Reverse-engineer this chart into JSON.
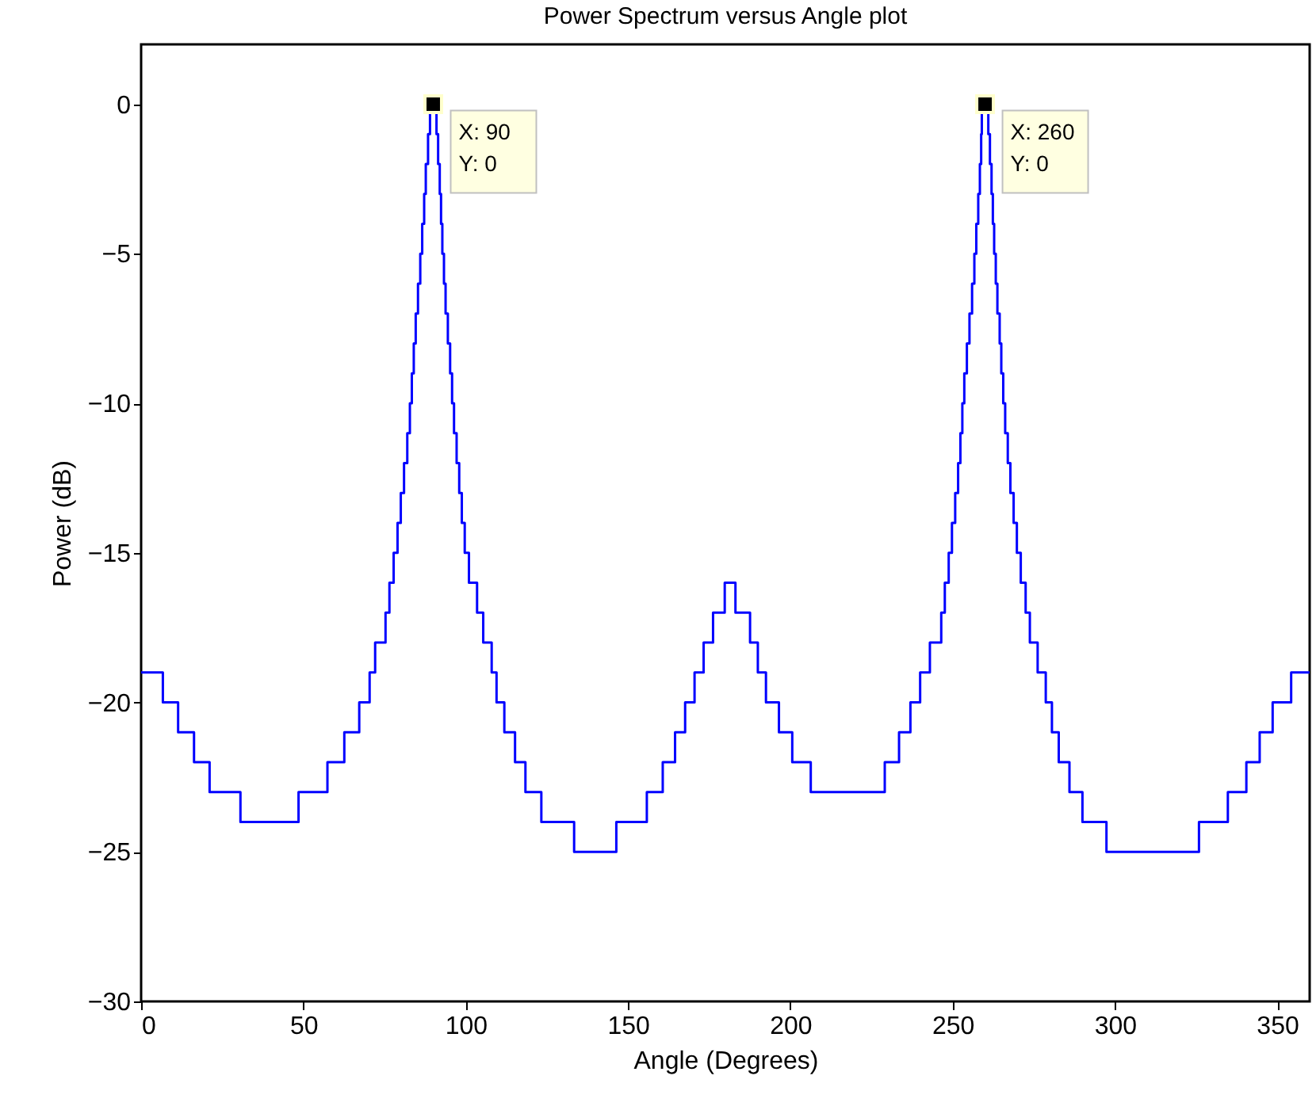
{
  "chart_data": {
    "type": "step",
    "title": "Power Spectrum versus Angle plot",
    "xlabel": "Angle (Degrees)",
    "ylabel": "Power (dB)",
    "xlim": [
      0,
      360
    ],
    "ylim": [
      -30,
      2
    ],
    "xticks": [
      0,
      50,
      100,
      150,
      200,
      250,
      300,
      350
    ],
    "yticks": [
      -30,
      -25,
      -20,
      -15,
      -10,
      -5,
      0
    ],
    "grid": false,
    "marker": "none",
    "line_style": "solid",
    "series": [
      {
        "color": "#0000ff",
        "x": [
          0,
          6.7,
          11.4,
          16.3,
          21.1,
          30.6,
          48.5,
          57.4,
          62.6,
          67.2,
          70.4,
          72.1,
          75.3,
          76.5,
          77.8,
          79,
          80,
          81,
          82,
          82.8,
          83.4,
          84,
          84.6,
          85.3,
          86,
          86.6,
          87.2,
          87.7,
          88.4,
          89,
          91,
          91.5,
          92,
          92.4,
          92.8,
          93.3,
          93.8,
          94.5,
          95.2,
          95.8,
          96.4,
          97.2,
          98,
          98.8,
          99.7,
          101,
          103.5,
          105.4,
          108,
          109.5,
          111.9,
          115.2,
          118.4,
          123.3,
          133.4,
          146.4,
          155.8,
          160.7,
          164.5,
          167.6,
          170.5,
          173.3,
          176.2,
          179.8,
          183.1,
          187.6,
          190,
          192.5,
          196.5,
          200.6,
          206.3,
          229.1,
          233.5,
          237,
          240,
          243,
          246.5,
          247.6,
          248.8,
          249.8,
          250.8,
          251.7,
          252.4,
          253,
          253.6,
          254.4,
          255.2,
          256,
          256.7,
          257.3,
          257.9,
          258.4,
          258.8,
          259,
          261,
          261.5,
          262,
          262.4,
          262.8,
          263.3,
          263.8,
          264.5,
          265,
          265.6,
          266.2,
          267,
          267.8,
          268.8,
          269.8,
          271,
          272.5,
          273.8,
          276.2,
          278.7,
          280.6,
          282.7,
          286,
          290,
          297.4,
          325.9,
          334.8,
          340.5,
          344.6,
          348.6,
          354.3,
          360
        ],
        "values": [
          -19,
          -20,
          -21,
          -22,
          -23,
          -24,
          -23,
          -22,
          -21,
          -20,
          -19,
          -18,
          -17,
          -16,
          -15,
          -14,
          -13,
          -12,
          -11,
          -10,
          -9,
          -8,
          -7,
          -6,
          -5,
          -4,
          -3,
          -2,
          -1,
          0,
          -1,
          -2,
          -3,
          -4,
          -5,
          -6,
          -7,
          -8,
          -9,
          -10,
          -11,
          -12,
          -13,
          -14,
          -15,
          -16,
          -17,
          -18,
          -19,
          -20,
          -21,
          -22,
          -23,
          -24,
          -25,
          -24,
          -23,
          -22,
          -21,
          -20,
          -19,
          -18,
          -17,
          -16,
          -17,
          -18,
          -19,
          -20,
          -21,
          -22,
          -23,
          -22,
          -21,
          -20,
          -19,
          -18,
          -17,
          -16,
          -15,
          -14,
          -13,
          -12,
          -11,
          -10,
          -9,
          -8,
          -7,
          -6,
          -5,
          -4,
          -3,
          -2,
          -1,
          0,
          -1,
          -2,
          -3,
          -4,
          -5,
          -6,
          -7,
          -8,
          -9,
          -10,
          -11,
          -12,
          -13,
          -14,
          -15,
          -16,
          -17,
          -18,
          -19,
          -20,
          -21,
          -22,
          -23,
          -24,
          -25,
          -24,
          -23,
          -22,
          -21,
          -20,
          -19,
          -19
        ]
      }
    ],
    "annotations": [
      {
        "text": "X: 90\nY: 0",
        "x": 90,
        "y": 0
      },
      {
        "text": "X: 260\nY: 0",
        "x": 260,
        "y": 0
      }
    ]
  }
}
